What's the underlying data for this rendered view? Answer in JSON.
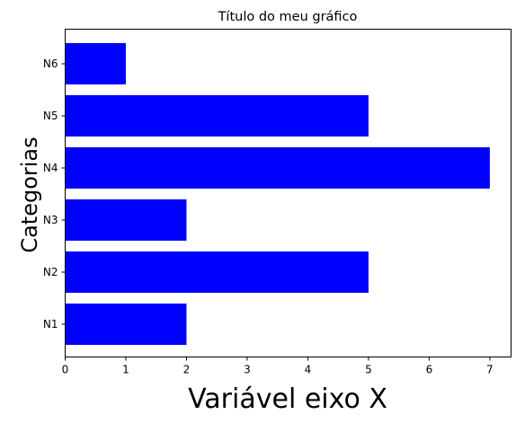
{
  "chart_data": {
    "type": "bar",
    "orientation": "horizontal",
    "title": "Título do meu gráfico",
    "xlabel": "Variável eixo X",
    "ylabel": "Categorias",
    "categories": [
      "N1",
      "N2",
      "N3",
      "N4",
      "N5",
      "N6"
    ],
    "values": [
      2,
      5,
      2,
      7,
      5,
      1
    ],
    "xlim": [
      0,
      7.35
    ],
    "x_ticks": [
      0,
      1,
      2,
      3,
      4,
      5,
      6,
      7
    ],
    "bar_color": "#0000ff",
    "grid": false,
    "legend": "none"
  }
}
